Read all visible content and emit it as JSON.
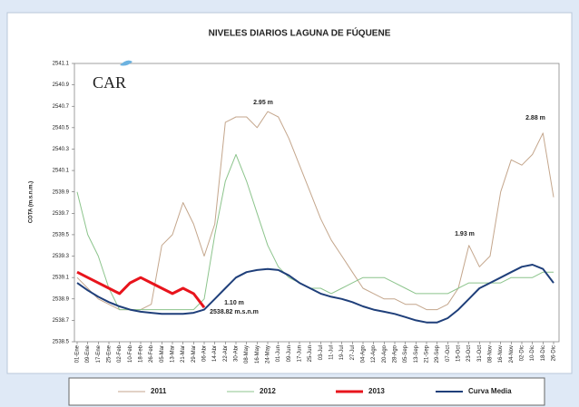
{
  "chart_data": {
    "type": "line",
    "title": "NIVELES DIARIOS LAGUNA DE FÚQUENE",
    "y_label": "COTA (m.s.n.m.)",
    "logo": "CAR",
    "annotations": [
      "2.95 m",
      "2.88 m",
      "1.93 m",
      "1.10 m",
      "2538.82 m.s.n.m"
    ],
    "categories": [
      "01-Ene",
      "09-Ene",
      "17-Ene",
      "25-Ene",
      "02-Feb",
      "10-Feb",
      "18-Feb",
      "26-Feb",
      "05-Mar",
      "13-Mar",
      "21-Mar",
      "29-Mar",
      "06-Abr",
      "14-Abr",
      "22-Abr",
      "30-Abr",
      "08-May",
      "16-May",
      "24-May",
      "01-Jun",
      "09-Jun",
      "17-Jun",
      "25-Jun",
      "03-Jul",
      "11-Jul",
      "19-Jul",
      "27-Jul",
      "04-Ago",
      "12-Ago",
      "20-Ago",
      "28-Ago",
      "05-Sep",
      "13-Sep",
      "21-Sep",
      "29-Sep",
      "07-Oct",
      "15-Oct",
      "23-Oct",
      "31-Oct",
      "08-Nov",
      "16-Nov",
      "24-Nov",
      "02-Dic",
      "10-Dic",
      "18-Dic",
      "26-Dic"
    ],
    "series": [
      {
        "name": "2011",
        "color": "#c4a68c",
        "width": 1,
        "values": [
          2539.1,
          2539.0,
          2538.9,
          2538.85,
          2538.8,
          2538.8,
          2538.8,
          2538.85,
          2539.4,
          2539.5,
          2539.8,
          2539.6,
          2539.3,
          2539.6,
          2540.55,
          2540.6,
          2540.6,
          2540.5,
          2540.65,
          2540.6,
          2540.4,
          2540.15,
          2539.9,
          2539.65,
          2539.45,
          2539.3,
          2539.15,
          2539.0,
          2538.95,
          2538.9,
          2538.9,
          2538.85,
          2538.85,
          2538.8,
          2538.8,
          2538.85,
          2539.0,
          2539.4,
          2539.2,
          2539.3,
          2539.9,
          2540.2,
          2540.15,
          2540.25,
          2540.45,
          2539.85
        ]
      },
      {
        "name": "2012",
        "color": "#8cc48c",
        "width": 1,
        "values": [
          2539.9,
          2539.5,
          2539.3,
          2539.0,
          2538.8,
          2538.8,
          2538.8,
          2538.8,
          2538.8,
          2538.8,
          2538.8,
          2538.8,
          2538.9,
          2539.5,
          2540.0,
          2540.25,
          2540.0,
          2539.7,
          2539.4,
          2539.2,
          2539.1,
          2539.05,
          2539.0,
          2539.0,
          2538.95,
          2539.0,
          2539.05,
          2539.1,
          2539.1,
          2539.1,
          2539.05,
          2539.0,
          2538.95,
          2538.95,
          2538.95,
          2538.95,
          2539.0,
          2539.05,
          2539.05,
          2539.05,
          2539.05,
          2539.1,
          2539.1,
          2539.1,
          2539.15,
          2539.15
        ]
      },
      {
        "name": "2013",
        "color": "#e8141c",
        "width": 3,
        "values": [
          2539.15,
          2539.1,
          2539.05,
          2539.0,
          2538.95,
          2539.05,
          2539.1,
          2539.05,
          2539.0,
          2538.95,
          2539.0,
          2538.95,
          2538.82,
          null,
          null,
          null,
          null,
          null,
          null,
          null,
          null,
          null,
          null,
          null,
          null,
          null,
          null,
          null,
          null,
          null,
          null,
          null,
          null,
          null,
          null,
          null,
          null,
          null,
          null,
          null,
          null,
          null,
          null,
          null,
          null,
          null
        ]
      },
      {
        "name": "Curva Media",
        "color": "#1f3f7a",
        "width": 2,
        "values": [
          2539.05,
          2538.98,
          2538.92,
          2538.87,
          2538.83,
          2538.8,
          2538.78,
          2538.77,
          2538.76,
          2538.76,
          2538.76,
          2538.77,
          2538.8,
          2538.9,
          2539.0,
          2539.1,
          2539.15,
          2539.17,
          2539.18,
          2539.17,
          2539.12,
          2539.05,
          2539.0,
          2538.95,
          2538.92,
          2538.9,
          2538.87,
          2538.83,
          2538.8,
          2538.78,
          2538.76,
          2538.73,
          2538.7,
          2538.68,
          2538.68,
          2538.72,
          2538.8,
          2538.9,
          2539.0,
          2539.05,
          2539.1,
          2539.15,
          2539.2,
          2539.22,
          2539.18,
          2539.05
        ]
      }
    ],
    "ylim": [
      2538.5,
      2541.1
    ],
    "yticks": [
      2538.5,
      2538.7,
      2538.9,
      2539.1,
      2539.3,
      2539.5,
      2539.7,
      2539.9,
      2540.1,
      2540.3,
      2540.5,
      2540.7,
      2540.9,
      2541.1
    ],
    "grid": false,
    "legend": "bottom"
  }
}
